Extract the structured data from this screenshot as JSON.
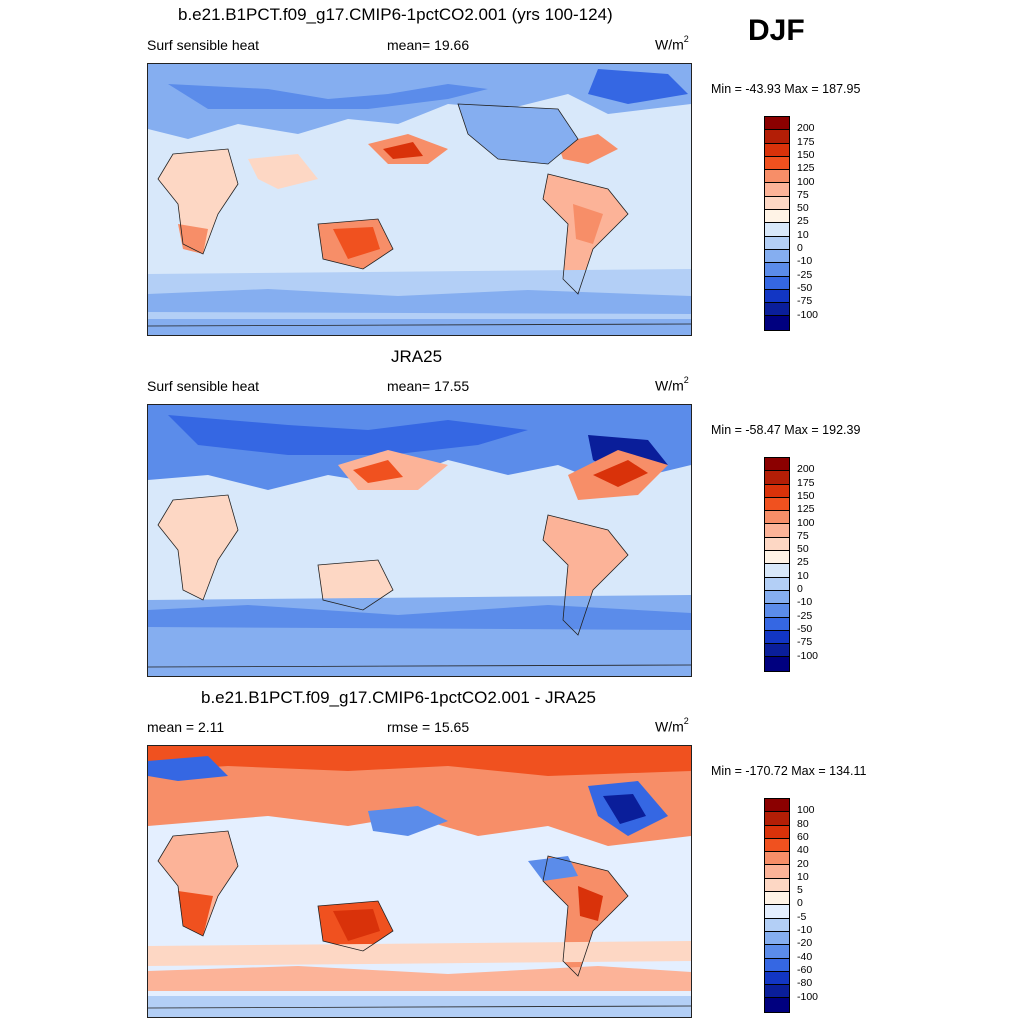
{
  "season": "DJF",
  "unit_base": "W/m",
  "unit_exp": "2",
  "panels": [
    {
      "title": "b.e21.B1PCT.f09_g17.CMIP6-1pctCO2.001 (yrs 100-124)",
      "left_label": "Surf sensible heat",
      "mid_label": "mean=  19.66",
      "minmax": "Min = -43.93 Max = 187.95"
    },
    {
      "title": "JRA25",
      "left_label": "Surf sensible heat",
      "mid_label": "mean=  17.55",
      "minmax": "Min = -58.47 Max = 192.39"
    },
    {
      "title": "b.e21.B1PCT.f09_g17.CMIP6-1pctCO2.001 - JRA25",
      "left_label": "mean =   2.11",
      "mid_label": "rmse =  15.65",
      "minmax": "Min = -170.72 Max = 134.11"
    }
  ],
  "colorbars": {
    "absolute": {
      "labels": [
        "200",
        "175",
        "150",
        "125",
        "100",
        "75",
        "50",
        "25",
        "10",
        "0",
        "-10",
        "-25",
        "-50",
        "-75",
        "-100"
      ],
      "colors": [
        "#8b0000",
        "#b31e06",
        "#d9320a",
        "#f0511f",
        "#f78e68",
        "#fcb398",
        "#fdd7c4",
        "#fff3e6",
        "#d8e8fa",
        "#b3cff6",
        "#85aef0",
        "#5b8cea",
        "#3567e3",
        "#1236c4",
        "#0a1e9a",
        "#00007f"
      ]
    },
    "difference": {
      "labels": [
        "100",
        "80",
        "60",
        "40",
        "20",
        "10",
        "5",
        "0",
        "-5",
        "-10",
        "-20",
        "-40",
        "-60",
        "-80",
        "-100"
      ],
      "colors": [
        "#8b0000",
        "#b31e06",
        "#d9320a",
        "#f0511f",
        "#f78e68",
        "#fcb398",
        "#fdd7c4",
        "#fff3e6",
        "#e4efff",
        "#b3cff6",
        "#85aef0",
        "#5b8cea",
        "#3567e3",
        "#1236c4",
        "#0a1e9a",
        "#00007f"
      ]
    }
  },
  "chart_data": [
    {
      "type": "heatmap",
      "title": "b.e21.B1PCT.f09_g17.CMIP6-1pctCO2.001 (yrs 100-124)",
      "variable": "Surf sensible heat",
      "units": "W/m2",
      "season": "DJF",
      "mean": 19.66,
      "min": -43.93,
      "max": 187.95,
      "levels": [
        -100,
        -75,
        -50,
        -25,
        -10,
        0,
        10,
        25,
        50,
        75,
        100,
        125,
        150,
        175,
        200
      ]
    },
    {
      "type": "heatmap",
      "title": "JRA25",
      "variable": "Surf sensible heat",
      "units": "W/m2",
      "season": "DJF",
      "mean": 17.55,
      "min": -58.47,
      "max": 192.39,
      "levels": [
        -100,
        -75,
        -50,
        -25,
        -10,
        0,
        10,
        25,
        50,
        75,
        100,
        125,
        150,
        175,
        200
      ]
    },
    {
      "type": "heatmap",
      "title": "b.e21.B1PCT.f09_g17.CMIP6-1pctCO2.001 - JRA25",
      "units": "W/m2",
      "season": "DJF",
      "mean": 2.11,
      "rmse": 15.65,
      "min": -170.72,
      "max": 134.11,
      "levels": [
        -100,
        -80,
        -60,
        -40,
        -20,
        -10,
        -5,
        0,
        5,
        10,
        20,
        40,
        60,
        80,
        100
      ]
    }
  ]
}
